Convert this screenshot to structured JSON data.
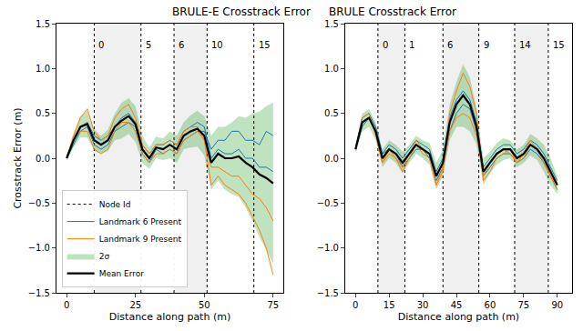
{
  "chart_data": [
    {
      "type": "line",
      "title": "BRULE-E Crosstrack Error",
      "x_label": "Distance along path (m)",
      "y_label": "Crosstrack Error (m)",
      "xlim": [
        -3.7,
        78.7
      ],
      "xticks": [
        0,
        25,
        50,
        75
      ],
      "ylim": [
        -1.5,
        1.5
      ],
      "yticks": [
        {
          "value": -1.5,
          "label": "−1.5"
        },
        {
          "value": -1.0,
          "label": "−1.0"
        },
        {
          "value": -0.5,
          "label": "−0.5"
        },
        {
          "value": 0,
          "label": "0.0"
        },
        0.5,
        {
          "value": 1.0,
          "label": "1.0"
        },
        1.5
      ],
      "legend": "lower left",
      "node_ids": {
        "name": "Node Id",
        "color": "#000000",
        "line_style": "dotted",
        "x": [
          10,
          27,
          39,
          51,
          68
        ],
        "labels": [
          0,
          5,
          6,
          10,
          15
        ]
      },
      "x": [
        0,
        2.5,
        5,
        7.5,
        10,
        12.5,
        15,
        17.5,
        20,
        22.5,
        25,
        27.5,
        30,
        32.5,
        35,
        37.5,
        40,
        42.5,
        45,
        47.5,
        50,
        52.5,
        55,
        57.5,
        60,
        62.5,
        65,
        67.5,
        70,
        72.5,
        75
      ],
      "band": {
        "name": "2σ",
        "color": "#2ca02c",
        "upper": [
          0.03,
          0.28,
          0.47,
          0.53,
          0.32,
          0.25,
          0.32,
          0.5,
          0.62,
          0.67,
          0.58,
          0.25,
          0.12,
          0.24,
          0.22,
          0.3,
          0.25,
          0.4,
          0.48,
          0.53,
          0.47,
          0.25,
          0.35,
          0.35,
          0.4,
          0.47,
          0.45,
          0.5,
          0.52,
          0.58,
          0.62
        ],
        "lower": [
          -0.03,
          0.12,
          0.23,
          0.23,
          0.08,
          0.05,
          0.08,
          0.2,
          0.22,
          0.27,
          0.18,
          -0.05,
          -0.12,
          0.0,
          -0.02,
          0.0,
          -0.05,
          0.1,
          0.12,
          0.13,
          0.03,
          -0.35,
          -0.25,
          -0.35,
          -0.4,
          -0.43,
          -0.55,
          -0.7,
          -0.88,
          -1.02,
          -1.18
        ]
      },
      "series": [
        {
          "name": "Landmark 6 Present",
          "color": "#1f77b4",
          "values": [
            0.0,
            0.15,
            0.3,
            0.35,
            0.15,
            0.1,
            0.15,
            0.3,
            0.35,
            0.4,
            0.35,
            0.05,
            -0.05,
            0.1,
            0.05,
            0.1,
            0.05,
            0.2,
            0.25,
            0.3,
            0.3,
            0.1,
            0.2,
            0.2,
            0.3,
            0.3,
            0.2,
            0.2,
            0.15,
            0.3,
            0.25
          ]
        },
        {
          "name": "Landmark 6 Present",
          "color": "#1f77b4",
          "values": [
            0.0,
            0.2,
            0.35,
            0.4,
            0.25,
            0.2,
            0.25,
            0.35,
            0.45,
            0.5,
            0.4,
            0.15,
            0.05,
            0.15,
            0.15,
            0.2,
            0.15,
            0.3,
            0.35,
            0.4,
            0.35,
            0.0,
            0.1,
            0.05,
            0.05,
            0.1,
            0.0,
            0.0,
            -0.1,
            -0.1,
            -0.15
          ]
        },
        {
          "name": "Landmark 9 Present",
          "color": "#ff7f0e",
          "values": [
            0.0,
            0.25,
            0.45,
            0.55,
            0.3,
            0.2,
            0.25,
            0.45,
            0.55,
            0.6,
            0.45,
            0.15,
            0.05,
            0.15,
            0.15,
            0.2,
            0.15,
            0.3,
            0.35,
            0.35,
            0.2,
            -0.3,
            -0.2,
            -0.3,
            -0.35,
            -0.4,
            -0.5,
            -0.65,
            -0.8,
            -1.0,
            -1.3
          ]
        },
        {
          "name": "Landmark 9 Present",
          "color": "#ff7f0e",
          "values": [
            0.0,
            0.2,
            0.3,
            0.3,
            0.1,
            0.05,
            0.1,
            0.3,
            0.4,
            0.4,
            0.3,
            0.05,
            -0.05,
            0.05,
            0.05,
            0.1,
            0.05,
            0.2,
            0.25,
            0.3,
            0.2,
            -0.1,
            -0.1,
            -0.15,
            -0.2,
            -0.2,
            -0.3,
            -0.4,
            -0.45,
            -0.55,
            -0.7
          ]
        },
        {
          "name": "Mean Error",
          "color": "#000000",
          "values": [
            0.0,
            0.2,
            0.35,
            0.38,
            0.2,
            0.15,
            0.2,
            0.35,
            0.42,
            0.47,
            0.38,
            0.1,
            0.0,
            0.12,
            0.1,
            0.15,
            0.1,
            0.25,
            0.3,
            0.33,
            0.25,
            -0.05,
            0.05,
            0.0,
            0.0,
            0.02,
            -0.05,
            -0.1,
            -0.18,
            -0.22,
            -0.28
          ]
        }
      ]
    },
    {
      "type": "line",
      "title": "BRULE Crosstrack Error",
      "x_label": "Distance along path (m)",
      "xlim": [
        -4.6,
        96.6
      ],
      "xticks": [
        0,
        15,
        30,
        45,
        60,
        75,
        90
      ],
      "ylim": [
        -1.5,
        1.5
      ],
      "yticks": [
        {
          "value": -1.5,
          "label": "−1.5"
        },
        {
          "value": -1.0,
          "label": "−1.0"
        },
        {
          "value": -0.5,
          "label": "−0.5"
        },
        {
          "value": 0,
          "label": "0.0"
        },
        0.5,
        {
          "value": 1.0,
          "label": "1.0"
        },
        1.5
      ],
      "node_ids": {
        "name": "Node Id",
        "color": "#000000",
        "line_style": "dotted",
        "x": [
          10,
          22,
          39,
          55,
          71,
          86
        ],
        "labels": [
          0,
          1,
          6,
          9,
          14,
          15
        ]
      },
      "x": [
        0,
        3,
        6,
        9,
        12,
        15,
        18,
        21,
        24,
        27,
        30,
        33,
        36,
        39,
        42,
        45,
        48,
        51,
        54,
        57,
        60,
        63,
        66,
        69,
        72,
        75,
        78,
        81,
        84,
        87,
        90
      ],
      "band": {
        "name": "2σ",
        "color": "#2ca02c",
        "upper": [
          0.15,
          0.5,
          0.55,
          0.4,
          0.1,
          0.2,
          0.15,
          0.07,
          0.15,
          0.25,
          0.2,
          0.17,
          -0.05,
          0.1,
          0.6,
          0.85,
          1.05,
          0.9,
          0.55,
          0.0,
          0.07,
          0.17,
          0.22,
          0.2,
          0.1,
          0.15,
          0.27,
          0.22,
          0.15,
          0.0,
          -0.2
        ],
        "lower": [
          0.05,
          0.3,
          0.35,
          0.2,
          -0.1,
          0.0,
          -0.05,
          -0.17,
          -0.05,
          0.05,
          0.0,
          -0.07,
          -0.35,
          -0.2,
          0.2,
          0.35,
          0.35,
          0.3,
          0.15,
          -0.3,
          -0.17,
          -0.07,
          -0.02,
          0.0,
          -0.1,
          -0.05,
          0.03,
          -0.02,
          -0.15,
          -0.3,
          -0.4
        ]
      },
      "series": [
        {
          "name": "Landmark 6 Present",
          "color": "#1f77b4",
          "values": [
            0.1,
            0.35,
            0.45,
            0.3,
            0.05,
            0.1,
            0.05,
            -0.1,
            0.0,
            0.1,
            0.1,
            0.0,
            -0.25,
            -0.1,
            0.3,
            0.5,
            0.6,
            0.55,
            0.3,
            -0.2,
            -0.1,
            0.0,
            0.05,
            0.05,
            -0.05,
            0.0,
            0.1,
            0.05,
            -0.05,
            -0.2,
            -0.35
          ]
        },
        {
          "name": "Landmark 6 Present",
          "color": "#1f77b4",
          "values": [
            0.1,
            0.45,
            0.5,
            0.35,
            0.05,
            0.15,
            0.1,
            0.0,
            0.1,
            0.2,
            0.15,
            0.1,
            -0.15,
            0.0,
            0.45,
            0.65,
            0.75,
            0.65,
            0.4,
            -0.1,
            0.0,
            0.1,
            0.15,
            0.15,
            0.05,
            0.1,
            0.2,
            0.15,
            0.05,
            -0.1,
            -0.25
          ]
        },
        {
          "name": "Landmark 9 Present",
          "color": "#ff7f0e",
          "values": [
            0.1,
            0.45,
            0.5,
            0.25,
            -0.05,
            0.1,
            0.0,
            -0.15,
            0.0,
            0.15,
            0.05,
            0.0,
            -0.3,
            -0.15,
            0.5,
            0.75,
            0.95,
            0.8,
            0.5,
            -0.25,
            -0.15,
            0.0,
            0.05,
            0.1,
            -0.05,
            0.0,
            0.15,
            0.1,
            0.0,
            -0.2,
            -0.35
          ]
        },
        {
          "name": "Landmark 9 Present",
          "color": "#ff7f0e",
          "values": [
            0.1,
            0.4,
            0.45,
            0.3,
            -0.05,
            0.05,
            0.0,
            -0.1,
            0.05,
            0.2,
            0.1,
            0.05,
            -0.3,
            -0.1,
            0.3,
            0.45,
            0.5,
            0.45,
            0.25,
            -0.2,
            -0.05,
            0.05,
            0.1,
            0.05,
            -0.05,
            0.05,
            0.2,
            0.1,
            -0.05,
            -0.2,
            -0.3
          ]
        },
        {
          "name": "Mean Error",
          "color": "#000000",
          "values": [
            0.1,
            0.4,
            0.45,
            0.3,
            0.0,
            0.1,
            0.05,
            -0.05,
            0.05,
            0.15,
            0.1,
            0.05,
            -0.2,
            -0.05,
            0.4,
            0.6,
            0.7,
            0.6,
            0.35,
            -0.15,
            -0.05,
            0.05,
            0.1,
            0.1,
            0.0,
            0.05,
            0.15,
            0.1,
            0.0,
            -0.15,
            -0.3
          ]
        }
      ]
    }
  ]
}
